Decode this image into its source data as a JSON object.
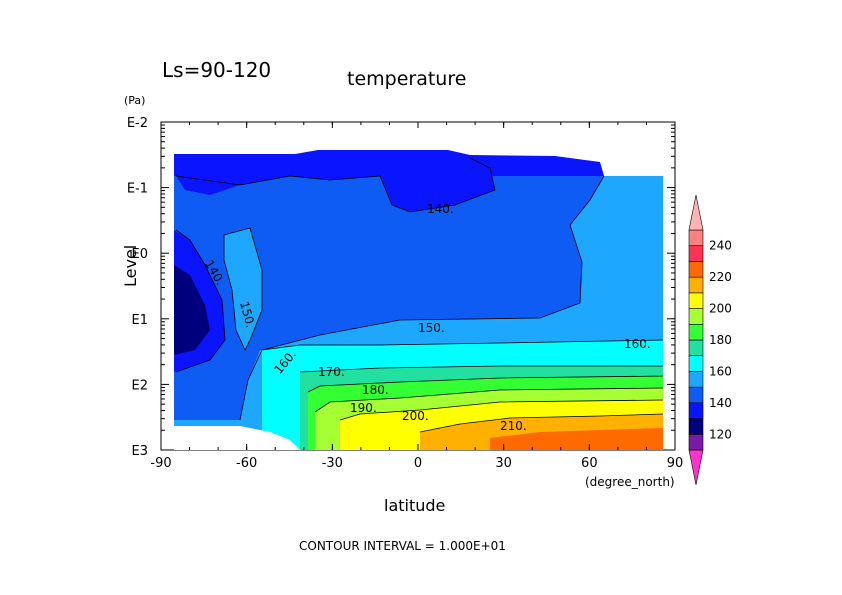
{
  "chart_data": {
    "type": "heatmap",
    "subtitle": "Ls=90-120",
    "title": "temperature",
    "xlabel": "latitude",
    "xunit": "(degree_north)",
    "ylabel": "Level",
    "yunit": "(Pa)",
    "footer": "CONTOUR INTERVAL = 1.000E+01",
    "xlim": [
      -90,
      90
    ],
    "ylim": [
      "E3",
      "E-2"
    ],
    "y_scale": "log10 pressure (reversed)",
    "x_ticks": [
      "-90",
      "-60",
      "-30",
      "0",
      "30",
      "60",
      "90"
    ],
    "y_ticks": [
      "E-2",
      "E-1",
      "E0",
      "E1",
      "E2",
      "E3"
    ],
    "contour_interval": 10,
    "contour_labels": [
      "140.",
      "140.",
      "150.",
      "150.",
      "160.",
      "160.",
      "170.",
      "180.",
      "190.",
      "200.",
      "210."
    ],
    "colorbar": {
      "labels": [
        "120",
        "140",
        "160",
        "180",
        "200",
        "220",
        "240"
      ],
      "colors": [
        "#ff33cc",
        "#7a1aa8",
        "#00007f",
        "#0a14ff",
        "#0f5cf5",
        "#1ea7ff",
        "#00ffff",
        "#22e0a0",
        "#33ff33",
        "#a6ff33",
        "#ffff00",
        "#ffb000",
        "#ff6a00",
        "#ff3355",
        "#ff8080",
        "#ffb3b3"
      ]
    }
  }
}
